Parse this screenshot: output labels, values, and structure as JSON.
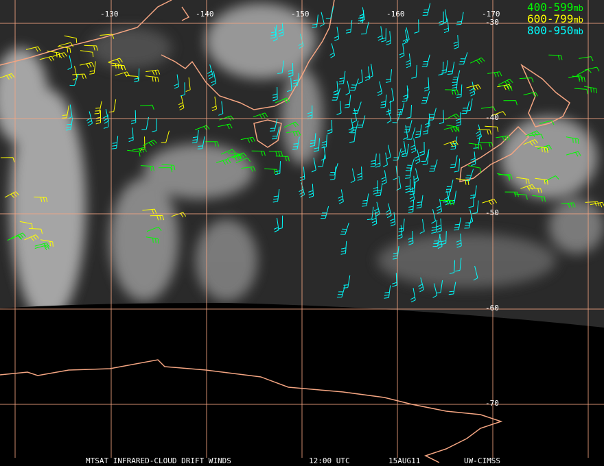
{
  "map": {
    "lon_lines": [
      -130,
      -140,
      -150,
      -160,
      -170
    ],
    "lat_lines": [
      -30,
      -40,
      -50,
      -60,
      -70
    ]
  },
  "legend": [
    {
      "label": "400-599",
      "unit": "mb",
      "color": "#00ff00"
    },
    {
      "label": "600-799",
      "unit": "mb",
      "color": "#ffff00"
    },
    {
      "label": "800-950",
      "unit": "mb",
      "color": "#00ffff"
    }
  ],
  "footer": {
    "product": "MTSAT INFRARED-CLOUD DRIFT WINDS",
    "time": "12:00 UTC",
    "date": "15AUG11",
    "source": "UW-CIMSS"
  }
}
